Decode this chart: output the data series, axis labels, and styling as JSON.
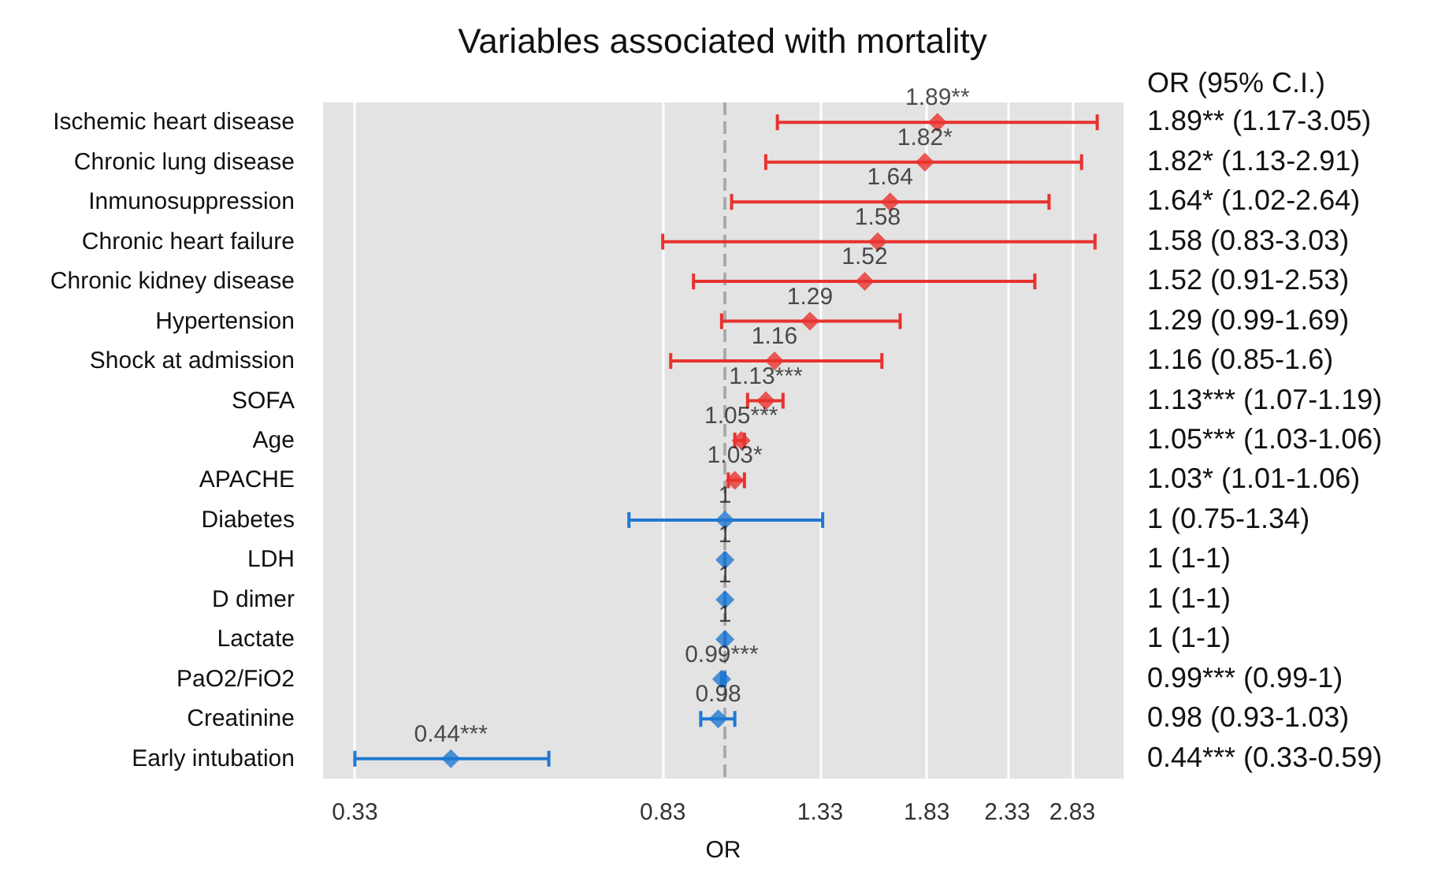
{
  "chart_data": {
    "type": "scatter",
    "orientation": "horizontal",
    "title": "Variables associated with mortality",
    "xlabel": "OR",
    "categories": [
      "Ischemic heart disease",
      "Chronic lung disease",
      "Inmunosuppression",
      "Chronic heart failure",
      "Chronic kidney disease",
      "Hypertension",
      "Shock at admission",
      "SOFA",
      "Age",
      "APACHE",
      "Diabetes",
      "LDH",
      "D dimer",
      "Lactate",
      "PaO2/FiO2",
      "Creatinine",
      "Early intubation"
    ],
    "values": [
      1.89,
      1.82,
      1.64,
      1.58,
      1.52,
      1.29,
      1.16,
      1.13,
      1.05,
      1.03,
      1,
      1,
      1,
      1,
      0.99,
      0.98,
      0.44
    ],
    "errors": [
      [
        1.17,
        3.05
      ],
      [
        1.13,
        2.91
      ],
      [
        1.02,
        2.64
      ],
      [
        0.83,
        3.03
      ],
      [
        0.91,
        2.53
      ],
      [
        0.99,
        1.69
      ],
      [
        0.85,
        1.6
      ],
      [
        1.07,
        1.19
      ],
      [
        1.03,
        1.06
      ],
      [
        1.01,
        1.06
      ],
      [
        0.75,
        1.34
      ],
      [
        1,
        1
      ],
      [
        1,
        1
      ],
      [
        1,
        1
      ],
      [
        0.99,
        1
      ],
      [
        0.93,
        1.03
      ],
      [
        0.33,
        0.59
      ]
    ],
    "value_labels": [
      "1.89**",
      "1.82*",
      "1.64",
      "1.58",
      "1.52",
      "1.29",
      "1.16",
      "1.13***",
      "1.05***",
      "1.03*",
      "1",
      "1",
      "1",
      "1",
      "0.99***",
      "0.98",
      "0.44***"
    ],
    "colors": [
      "#e8322e",
      "#e8322e",
      "#e8322e",
      "#e8322e",
      "#e8322e",
      "#e8322e",
      "#e8322e",
      "#e8322e",
      "#e8322e",
      "#e8322e",
      "#1f78d1",
      "#1f78d1",
      "#1f78d1",
      "#1f78d1",
      "#1f78d1",
      "#1f78d1",
      "#1f78d1"
    ],
    "xlim": [
      0.3,
      3.3
    ],
    "xticks": [
      0.33,
      0.83,
      1.33,
      1.83,
      2.33,
      2.83
    ],
    "log": "x",
    "grid": "x",
    "marker": "diamond",
    "ref_lines": [
      {
        "axis": "x",
        "value": 1,
        "label": null,
        "color": "#aaaaaa",
        "line_style": "dashed"
      }
    ],
    "annotations": [
      "OR (95% C.I.)",
      "1.89** (1.17-3.05)",
      "1.82* (1.13-2.91)",
      "1.64* (1.02-2.64)",
      "1.58 (0.83-3.03)",
      "1.52 (0.91-2.53)",
      "1.29 (0.99-1.69)",
      "1.16 (0.85-1.6)",
      "1.13*** (1.07-1.19)",
      "1.05*** (1.03-1.06)",
      "1.03* (1.01-1.06)",
      "1 (0.75-1.34)",
      "1 (1-1)",
      "1 (1-1)",
      "1 (1-1)",
      "0.99*** (0.99-1)",
      "0.98 (0.93-1.03)",
      "0.44*** (0.33-0.59)"
    ]
  }
}
